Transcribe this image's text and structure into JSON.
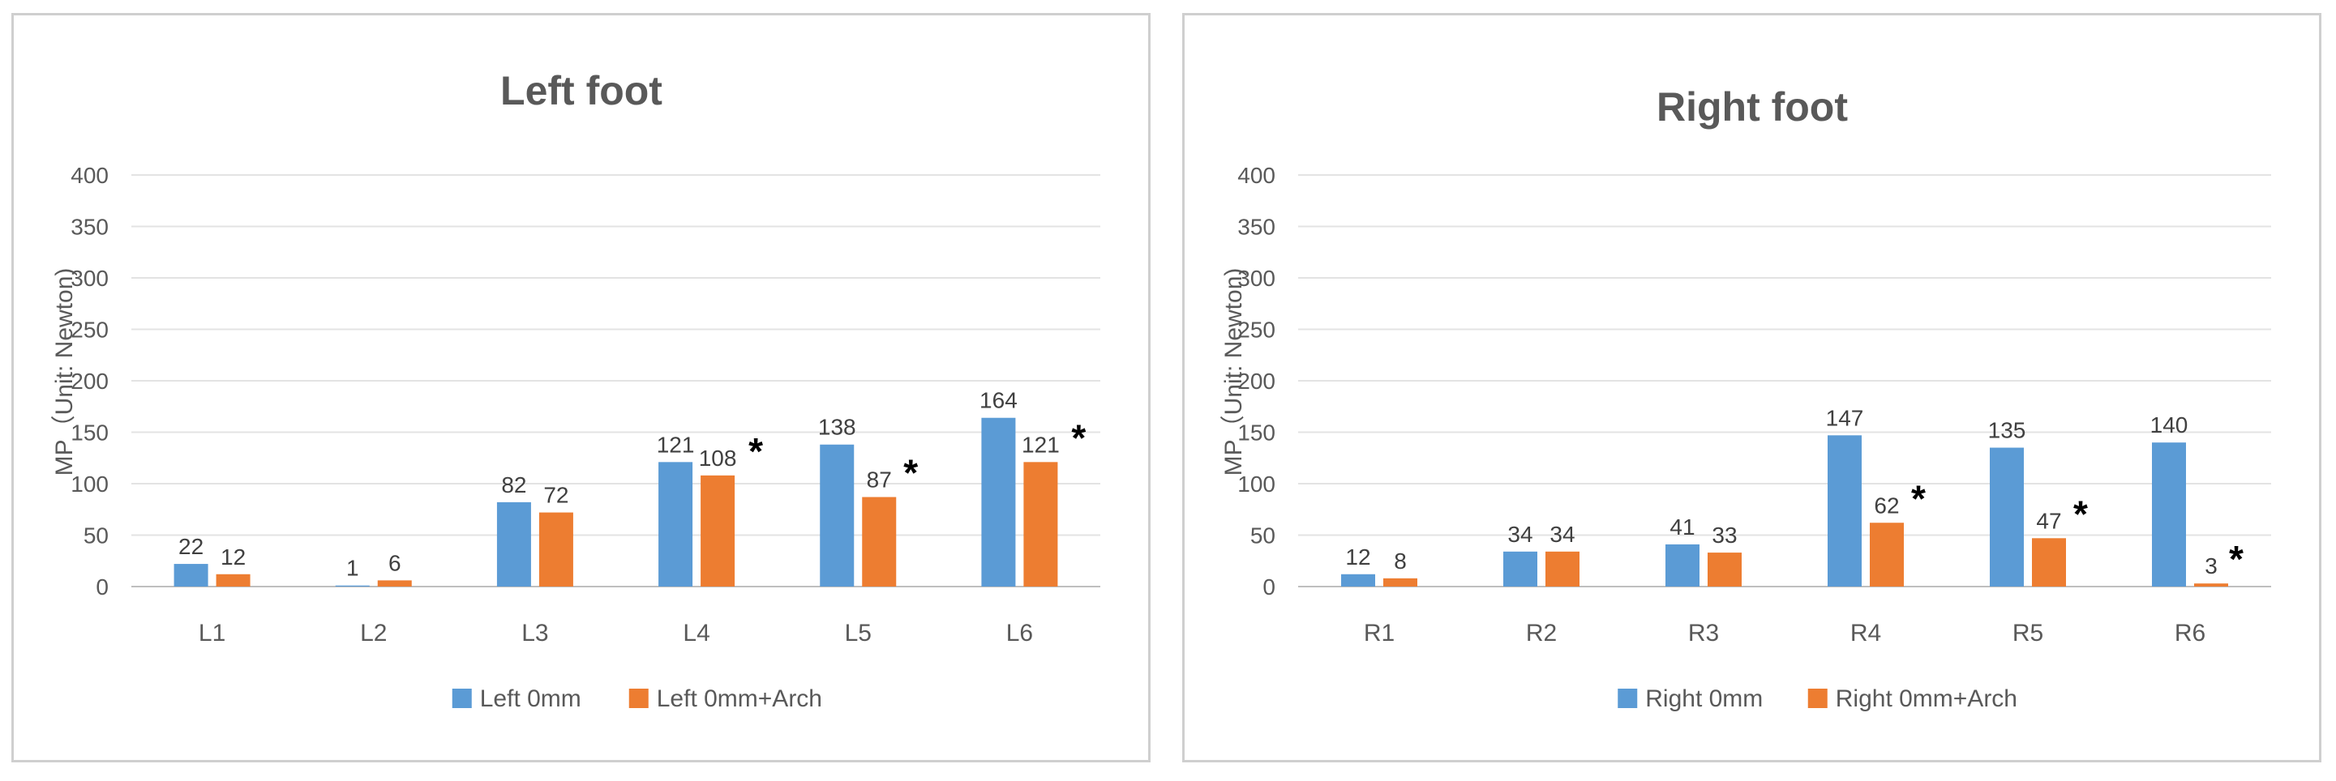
{
  "chart_data": [
    {
      "type": "bar",
      "title": "Left foot",
      "xlabel": "",
      "ylabel": "MP（Unit: Newton)",
      "ylim": [
        0,
        400
      ],
      "yticks": [
        "0",
        "50",
        "100",
        "150",
        "200",
        "250",
        "300",
        "350",
        "400"
      ],
      "categories": [
        "L1",
        "L2",
        "L3",
        "L4",
        "L5",
        "L6"
      ],
      "series": [
        {
          "name": "Left 0mm",
          "values": [
            22,
            1,
            82,
            121,
            138,
            164
          ],
          "labels": [
            "22",
            "1",
            "82",
            "121",
            "138",
            "164"
          ],
          "color": "#5b9bd5"
        },
        {
          "name": "Left 0mm+Arch",
          "values": [
            12,
            6,
            72,
            108,
            87,
            121
          ],
          "labels": [
            "12",
            "6",
            "72",
            "108",
            "87",
            "121"
          ],
          "color": "#ed7d31"
        }
      ],
      "significance": [
        false,
        false,
        false,
        true,
        true,
        true
      ],
      "significance_marker": "*",
      "grid": true,
      "legend": "bottom"
    },
    {
      "type": "bar",
      "title": "Right foot",
      "xlabel": "",
      "ylabel": "MP（Unit: Newton)",
      "ylim": [
        0,
        400
      ],
      "yticks": [
        "0",
        "50",
        "100",
        "150",
        "200",
        "250",
        "300",
        "350",
        "400"
      ],
      "categories": [
        "R1",
        "R2",
        "R3",
        "R4",
        "R5",
        "R6"
      ],
      "series": [
        {
          "name": "Right 0mm",
          "values": [
            12,
            34,
            41,
            147,
            135,
            140
          ],
          "labels": [
            "12",
            "34",
            "41",
            "147",
            "135",
            "140"
          ],
          "color": "#5b9bd5"
        },
        {
          "name": "Right 0mm+Arch",
          "values": [
            8,
            34,
            33,
            62,
            47,
            3
          ],
          "labels": [
            "8",
            "34",
            "33",
            "62",
            "47",
            "3"
          ],
          "color": "#ed7d31"
        }
      ],
      "significance": [
        false,
        false,
        false,
        true,
        true,
        true
      ],
      "significance_marker": "*",
      "grid": true,
      "legend": "bottom"
    }
  ]
}
